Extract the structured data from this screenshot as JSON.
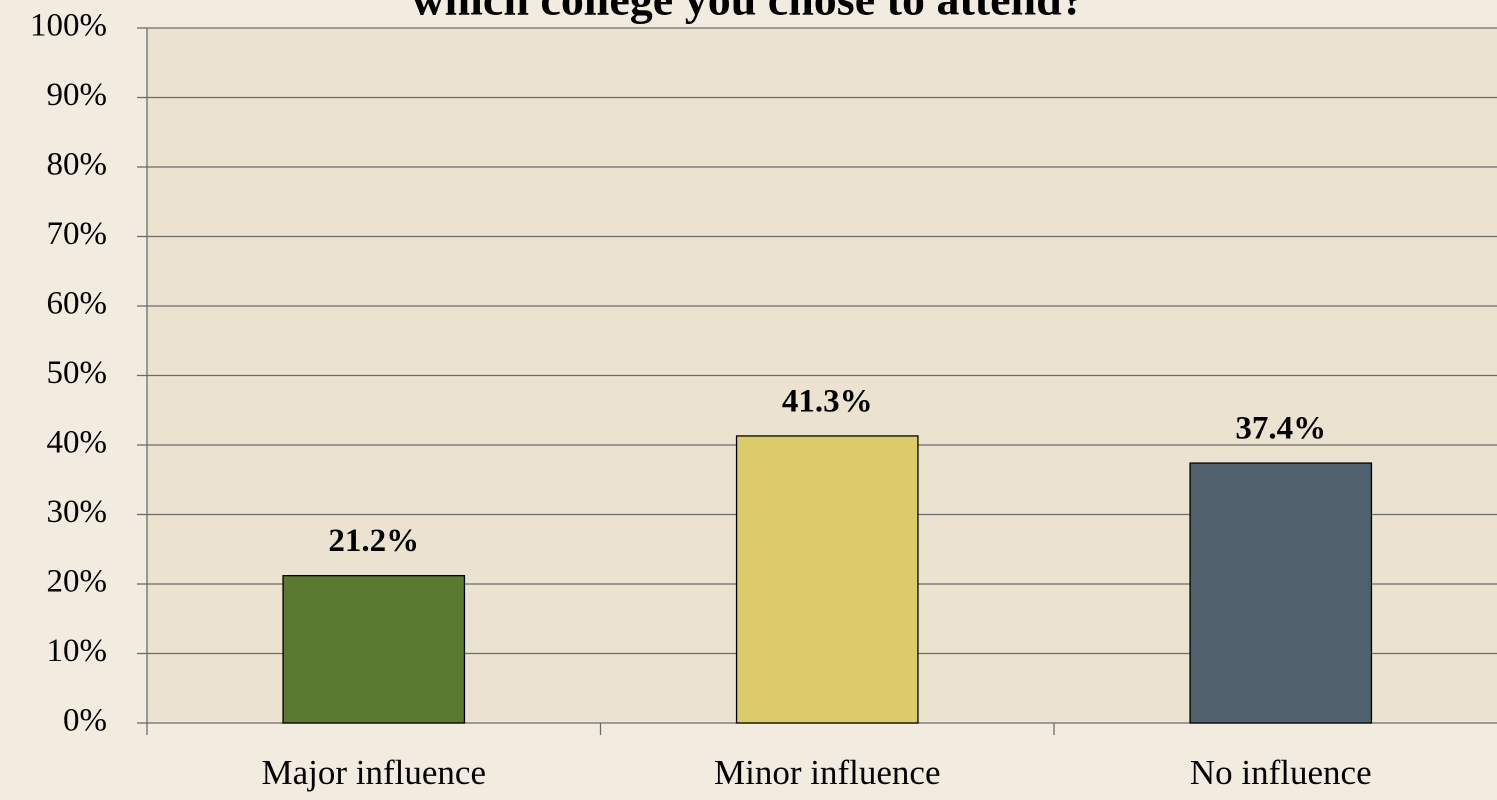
{
  "chart_data": {
    "type": "bar",
    "title": "which college you chose to attend?",
    "categories": [
      "Major influence",
      "Minor influence",
      "No influence"
    ],
    "values": [
      21.2,
      41.3,
      37.4
    ],
    "value_labels": [
      "21.2%",
      "41.3%",
      "37.4%"
    ],
    "colors": [
      "#5a7a32",
      "#dccb6a",
      "#50616d"
    ],
    "ylim": [
      0,
      100
    ],
    "yticks": [
      {
        "value": 0,
        "label": "0%"
      },
      {
        "value": 10,
        "label": "10%"
      },
      {
        "value": 20,
        "label": "20%"
      },
      {
        "value": 30,
        "label": "30%"
      },
      {
        "value": 40,
        "label": "40%"
      },
      {
        "value": 50,
        "label": "50%"
      },
      {
        "value": 60,
        "label": "60%"
      },
      {
        "value": 70,
        "label": "70%"
      },
      {
        "value": 80,
        "label": "80%"
      },
      {
        "value": 90,
        "label": "90%"
      },
      {
        "value": 100,
        "label": "100%"
      }
    ],
    "grid": true
  }
}
